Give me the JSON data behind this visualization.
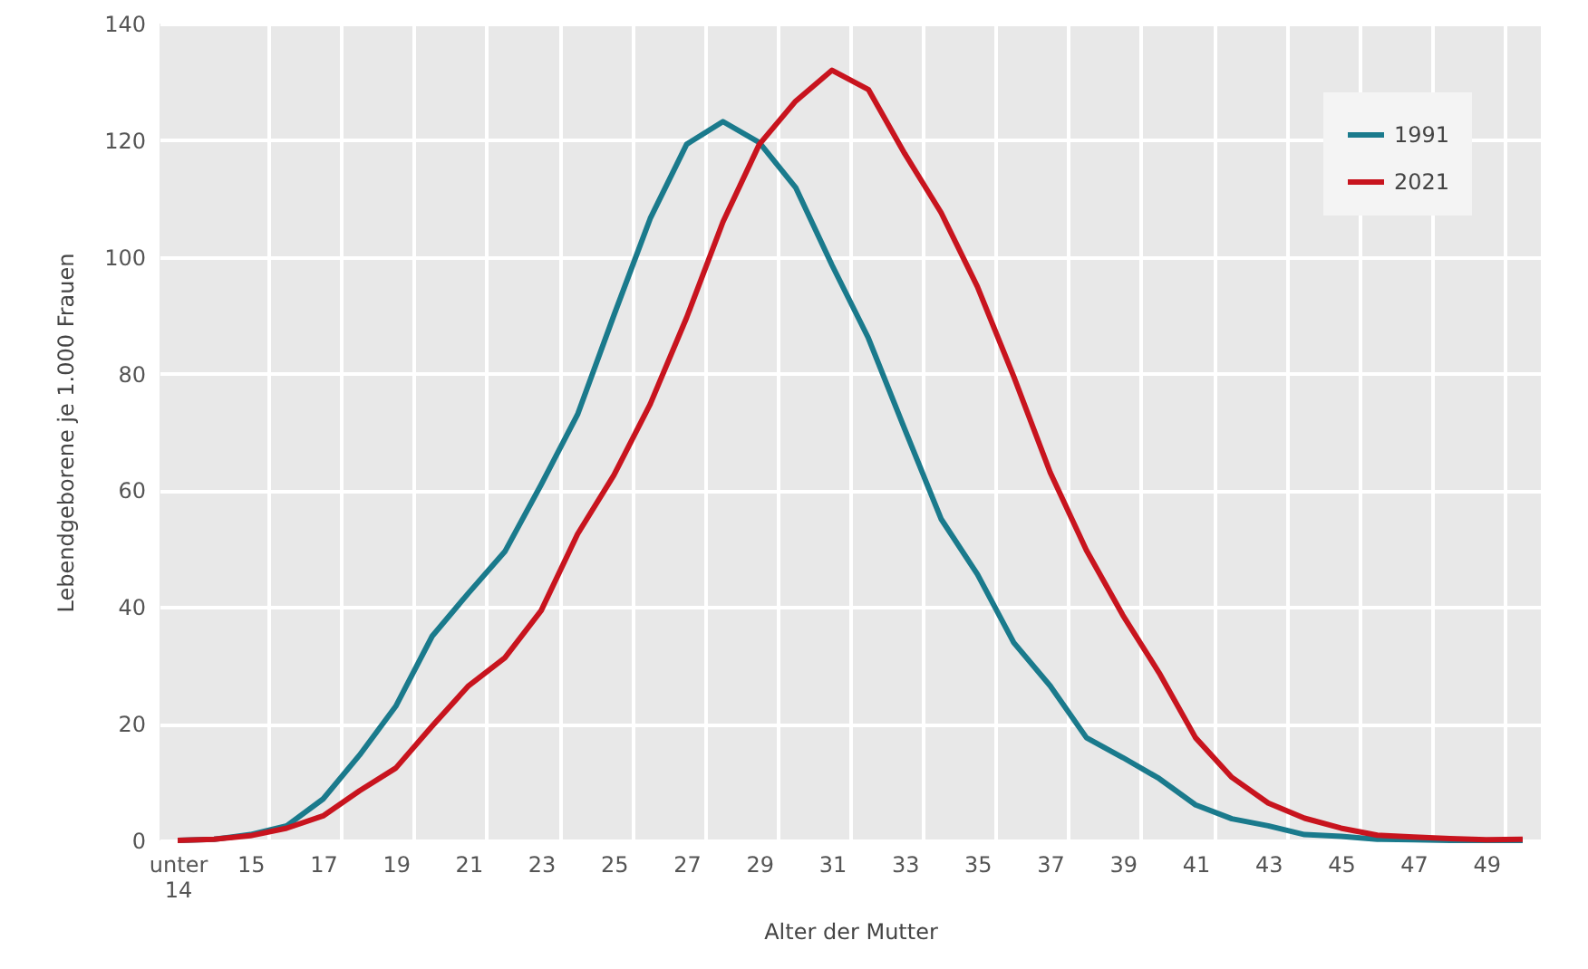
{
  "chart_data": {
    "type": "line",
    "xlabel": "Alter der Mutter",
    "ylabel": "Lebendgeborene je 1.000 Frauen",
    "categories": [
      "unter 14",
      null,
      "15",
      null,
      "17",
      null,
      "19",
      null,
      "21",
      null,
      "23",
      null,
      "25",
      null,
      "27",
      null,
      "29",
      null,
      "31",
      null,
      "33",
      null,
      "35",
      null,
      "37",
      null,
      "39",
      null,
      "41",
      null,
      "43",
      null,
      "45",
      null,
      "47",
      null,
      "49",
      null
    ],
    "series": [
      {
        "name": "1991",
        "color": "#1a7a8c",
        "values": [
          0,
          0.2,
          1,
          2.5,
          7.1,
          14.6,
          23,
          35,
          42.4,
          49.5,
          61,
          73,
          90,
          106.6,
          119.3,
          123.2,
          119.6,
          111.9,
          98.6,
          86.1,
          70.5,
          55.1,
          45.6,
          33.9,
          26.5,
          17.6,
          14.2,
          10.6,
          6.1,
          3.7,
          2.5,
          1,
          0.7,
          0.2,
          0.1,
          0,
          0,
          0
        ]
      },
      {
        "name": "2021",
        "color": "#c8141e",
        "values": [
          0,
          0.2,
          0.8,
          2.1,
          4.2,
          8.5,
          12.4,
          19.6,
          26.5,
          31.3,
          39.4,
          52.5,
          62.6,
          74.8,
          89.6,
          106,
          119.3,
          126.7,
          132,
          128.7,
          117.7,
          107.6,
          94.9,
          79.5,
          63.1,
          49.7,
          38.6,
          28.7,
          17.6,
          10.8,
          6.4,
          3.8,
          2.1,
          0.9,
          0.6,
          0.3,
          0.1,
          0.2
        ]
      }
    ],
    "ylim": [
      0,
      140
    ],
    "yticks": [
      0,
      20,
      40,
      60,
      80,
      100,
      120,
      140
    ],
    "grid": true,
    "legend": "top right",
    "line_style": "solid"
  }
}
